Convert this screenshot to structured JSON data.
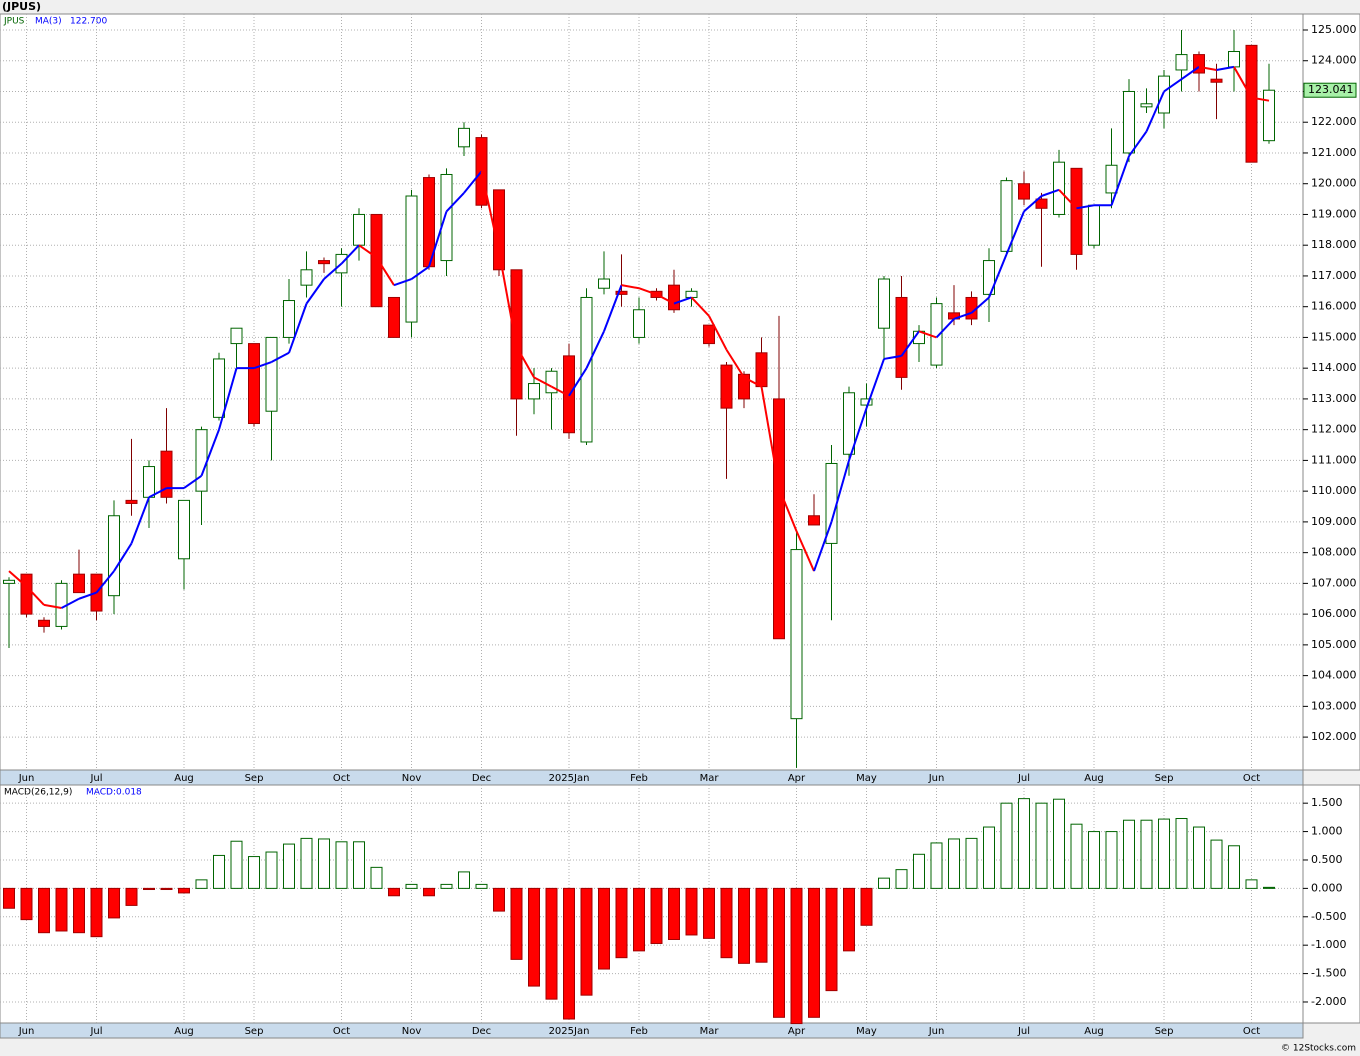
{
  "chart_data": [
    {
      "type": "candlestick",
      "title": "(JPUS)",
      "categories": [
        null,
        "Jun",
        null,
        null,
        null,
        "Jul",
        null,
        null,
        null,
        null,
        "Aug",
        null,
        null,
        null,
        "Sep",
        null,
        null,
        null,
        null,
        "Oct",
        null,
        null,
        null,
        "Nov",
        null,
        null,
        null,
        "Dec",
        null,
        null,
        null,
        null,
        "2025Jan",
        null,
        null,
        null,
        "Feb",
        null,
        null,
        null,
        "Mar",
        null,
        null,
        null,
        null,
        "Apr",
        null,
        null,
        null,
        "May",
        null,
        null,
        null,
        "Jun",
        null,
        null,
        null,
        null,
        "Jul",
        null,
        null,
        null,
        "Aug",
        null,
        null,
        null,
        "Sep",
        null,
        null,
        null,
        null,
        "Oct",
        null
      ],
      "series": [
        {
          "name": "JPUS",
          "up_color": "#006400",
          "down_color": "#ff0000",
          "open": [
            107.0,
            107.3,
            105.8,
            105.6,
            107.3,
            107.3,
            106.6,
            109.7,
            109.8,
            111.3,
            107.8,
            110.0,
            112.4,
            114.8,
            114.8,
            112.6,
            115.0,
            116.7,
            117.5,
            117.1,
            118.0,
            119.0,
            116.3,
            115.5,
            120.2,
            117.5,
            121.2,
            121.5,
            119.8,
            117.2,
            113.0,
            113.2,
            114.4,
            111.6,
            116.6,
            116.5,
            115.0,
            116.5,
            116.7,
            116.3,
            115.4,
            114.1,
            113.8,
            114.5,
            113.0,
            102.6,
            109.2,
            108.3,
            111.2,
            112.8,
            115.3,
            116.3,
            114.8,
            114.1,
            115.8,
            116.3,
            116.4,
            117.8,
            120.0,
            119.5,
            119.0,
            120.5,
            118.0,
            119.7,
            121.0,
            122.5,
            122.3,
            123.7,
            124.2,
            123.4,
            123.8,
            124.5,
            121.4
          ],
          "high": [
            107.2,
            107.3,
            105.9,
            107.1,
            108.1,
            107.3,
            109.7,
            111.7,
            111.0,
            112.7,
            109.7,
            112.1,
            114.5,
            115.3,
            114.8,
            115.0,
            116.9,
            117.8,
            117.6,
            117.9,
            119.2,
            119.0,
            116.3,
            119.8,
            120.3,
            120.5,
            122.0,
            121.6,
            119.8,
            117.2,
            114.0,
            114.0,
            114.8,
            116.6,
            117.8,
            117.7,
            116.3,
            116.6,
            117.2,
            116.6,
            115.4,
            114.2,
            113.9,
            115.0,
            115.7,
            108.7,
            109.9,
            111.5,
            113.4,
            113.5,
            117.0,
            117.0,
            115.4,
            116.3,
            116.7,
            116.5,
            117.9,
            120.2,
            120.4,
            119.7,
            121.1,
            120.5,
            119.3,
            121.8,
            123.4,
            123.1,
            123.7,
            125.0,
            124.3,
            123.9,
            125.0,
            124.5,
            123.9
          ],
          "low": [
            104.9,
            105.9,
            105.4,
            105.5,
            106.7,
            105.8,
            106.0,
            109.2,
            108.8,
            109.6,
            106.8,
            108.9,
            112.3,
            114.0,
            112.1,
            111.0,
            114.8,
            116.3,
            117.1,
            116.0,
            117.5,
            116.0,
            115.0,
            115.0,
            117.2,
            117.0,
            120.9,
            119.2,
            117.0,
            111.8,
            112.5,
            112.0,
            111.7,
            111.5,
            116.4,
            116.0,
            114.8,
            116.2,
            115.8,
            116.0,
            114.7,
            110.4,
            112.7,
            113.3,
            105.2,
            101.0,
            108.9,
            105.8,
            110.5,
            112.1,
            114.3,
            113.3,
            114.2,
            114.0,
            115.4,
            115.4,
            115.5,
            117.7,
            119.3,
            117.3,
            118.9,
            117.2,
            117.9,
            119.2,
            120.7,
            122.3,
            121.8,
            123.0,
            123.0,
            122.1,
            123.0,
            120.7,
            121.3
          ],
          "close": [
            107.1,
            106.0,
            105.6,
            107.0,
            106.7,
            106.1,
            109.2,
            109.6,
            110.8,
            109.8,
            109.7,
            112.0,
            114.3,
            115.3,
            112.2,
            115.0,
            116.2,
            117.2,
            117.4,
            117.7,
            119.0,
            116.0,
            115.0,
            119.6,
            117.3,
            120.3,
            121.8,
            119.3,
            117.2,
            113.0,
            113.5,
            113.9,
            111.9,
            116.3,
            116.9,
            116.4,
            115.9,
            116.3,
            115.9,
            116.5,
            114.8,
            112.7,
            113.0,
            113.4,
            105.2,
            108.1,
            108.9,
            110.9,
            113.2,
            113.0,
            116.9,
            113.7,
            115.2,
            116.1,
            115.6,
            115.6,
            117.5,
            120.1,
            119.5,
            119.2,
            120.7,
            117.7,
            119.3,
            120.6,
            123.0,
            122.6,
            123.5,
            124.2,
            123.6,
            123.3,
            124.3,
            120.7,
            123.041
          ]
        },
        {
          "name": "MA(3)",
          "type": "line",
          "up_color": "#0000ff",
          "down_color": "#ff0000",
          "value_label": "122.700",
          "values": [
            107.4,
            106.9,
            106.3,
            106.2,
            106.5,
            106.7,
            107.4,
            108.3,
            109.8,
            110.1,
            110.1,
            110.5,
            112.0,
            114.0,
            114.0,
            114.2,
            114.5,
            116.1,
            116.9,
            117.4,
            118.0,
            117.6,
            116.7,
            116.9,
            117.3,
            119.1,
            119.7,
            120.4,
            117.8,
            114.7,
            113.7,
            113.4,
            113.1,
            114.0,
            115.2,
            116.7,
            116.6,
            116.4,
            116.1,
            116.3,
            115.7,
            114.6,
            113.7,
            113.4,
            110.1,
            108.7,
            107.4,
            109.0,
            111.0,
            112.7,
            114.3,
            114.4,
            115.2,
            115.0,
            115.6,
            115.8,
            116.3,
            117.7,
            119.1,
            119.6,
            119.8,
            119.2,
            119.3,
            119.3,
            120.9,
            121.7,
            123.0,
            123.4,
            123.8,
            123.7,
            123.8,
            122.8,
            122.7
          ]
        }
      ],
      "ylim": [
        100.93,
        125.52
      ],
      "yticks": [
        {
          "value": 102,
          "label": "102.000"
        },
        {
          "value": 103,
          "label": "103.000"
        },
        {
          "value": 104,
          "label": "104.000"
        },
        {
          "value": 105,
          "label": "105.000"
        },
        {
          "value": 106,
          "label": "106.000"
        },
        {
          "value": 107,
          "label": "107.000"
        },
        {
          "value": 108,
          "label": "108.000"
        },
        {
          "value": 109,
          "label": "109.000"
        },
        {
          "value": 110,
          "label": "110.000"
        },
        {
          "value": 111,
          "label": "111.000"
        },
        {
          "value": 112,
          "label": "112.000"
        },
        {
          "value": 113,
          "label": "113.000"
        },
        {
          "value": 114,
          "label": "114.000"
        },
        {
          "value": 115,
          "label": "115.000"
        },
        {
          "value": 116,
          "label": "116.000"
        },
        {
          "value": 117,
          "label": "117.000"
        },
        {
          "value": 118,
          "label": "118.000"
        },
        {
          "value": 119,
          "label": "119.000"
        },
        {
          "value": 120,
          "label": "120.000"
        },
        {
          "value": 121,
          "label": "121.000"
        },
        {
          "value": 122,
          "label": "122.000"
        },
        {
          "value": 123,
          "label": "123.000"
        },
        {
          "value": 124,
          "label": "124.000"
        },
        {
          "value": 125,
          "label": "125.000"
        }
      ],
      "grid": true
    },
    {
      "type": "bar",
      "title": "MACD(26,12,9)",
      "categories": [
        null,
        "Jun",
        null,
        null,
        null,
        "Jul",
        null,
        null,
        null,
        null,
        "Aug",
        null,
        null,
        null,
        "Sep",
        null,
        null,
        null,
        null,
        "Oct",
        null,
        null,
        null,
        "Nov",
        null,
        null,
        null,
        "Dec",
        null,
        null,
        null,
        null,
        "2025Jan",
        null,
        null,
        null,
        "Feb",
        null,
        null,
        null,
        "Mar",
        null,
        null,
        null,
        null,
        "Apr",
        null,
        null,
        null,
        "May",
        null,
        null,
        null,
        "Jun",
        null,
        null,
        null,
        null,
        "Jul",
        null,
        null,
        null,
        "Aug",
        null,
        null,
        null,
        "Sep",
        null,
        null,
        null,
        null,
        "Oct",
        null
      ],
      "series": [
        {
          "name": "MACD:0.018",
          "up_color": "#006400",
          "down_color": "#ff0000",
          "values": [
            -0.35,
            -0.55,
            -0.78,
            -0.75,
            -0.78,
            -0.85,
            -0.52,
            -0.3,
            -0.02,
            -0.02,
            -0.08,
            0.15,
            0.58,
            0.83,
            0.56,
            0.64,
            0.78,
            0.88,
            0.87,
            0.82,
            0.82,
            0.37,
            -0.13,
            0.07,
            -0.13,
            0.07,
            0.29,
            0.07,
            -0.4,
            -1.25,
            -1.72,
            -1.95,
            -2.3,
            -1.88,
            -1.42,
            -1.22,
            -1.1,
            -0.97,
            -0.9,
            -0.82,
            -0.88,
            -1.22,
            -1.32,
            -1.3,
            -2.27,
            -2.38,
            -2.27,
            -1.8,
            -1.1,
            -0.65,
            0.18,
            0.33,
            0.6,
            0.8,
            0.87,
            0.88,
            1.08,
            1.5,
            1.58,
            1.5,
            1.57,
            1.13,
            1.0,
            1.0,
            1.2,
            1.2,
            1.22,
            1.23,
            1.08,
            0.85,
            0.75,
            0.15,
            0.018
          ]
        }
      ],
      "ylim": [
        -2.37,
        1.82
      ],
      "yticks": [
        {
          "value": 1.5,
          "label": "1.500"
        },
        {
          "value": 1,
          "label": "1.000"
        },
        {
          "value": 0.5,
          "label": "0.500"
        },
        {
          "value": 0,
          "label": "0.000"
        },
        {
          "value": -0.5,
          "label": "-0.500"
        },
        {
          "value": -1,
          "label": "-1.000"
        },
        {
          "value": -1.5,
          "label": "-1.500"
        },
        {
          "value": -2,
          "label": "-2.000"
        }
      ],
      "grid": true
    }
  ],
  "footer": "© 12Stocks.com"
}
